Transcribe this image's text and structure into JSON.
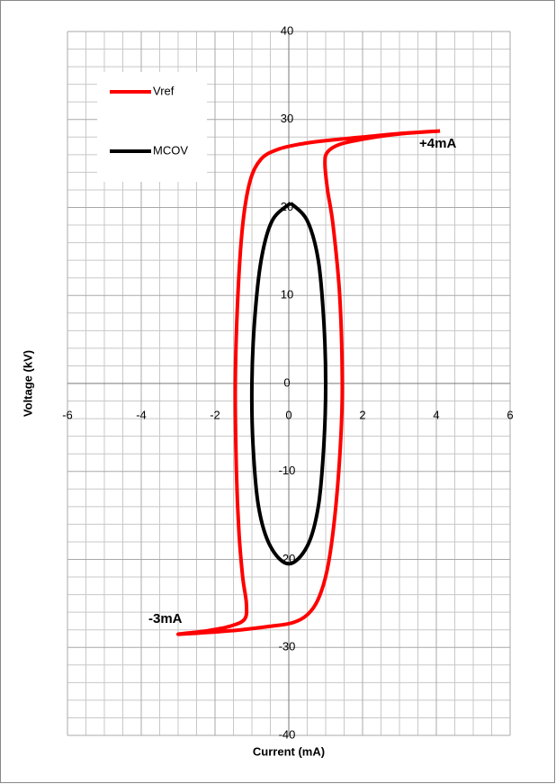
{
  "chart_data": {
    "type": "line",
    "x_label": "Current (mA)",
    "y_label": "Voltage (kV)",
    "xlim": [
      -6,
      6
    ],
    "xticks": [
      -6,
      -4,
      -2,
      0,
      2,
      4,
      6
    ],
    "ylim": [
      -40,
      40
    ],
    "yticks": [
      -40,
      -30,
      -20,
      -10,
      0,
      10,
      20,
      30,
      40
    ],
    "grid": true,
    "legend": "upper left",
    "series": [
      {
        "name": "Vref",
        "color": "#ff0000",
        "x": [
          4.1,
          3,
          2,
          1,
          0.3,
          -0.3,
          -0.75,
          -1.05,
          -1.25,
          -1.38,
          -1.45,
          -1.42,
          -1.35,
          -1.25,
          -1.15,
          -1.2,
          -1.6,
          -2.2,
          -3,
          -2.2,
          -1.3,
          -0.5,
          0.1,
          0.5,
          0.8,
          1.05,
          1.25,
          1.4,
          1.45,
          1.38,
          1.2,
          1.05,
          0.98,
          1.05,
          1.4,
          2.2,
          3.1,
          4.1
        ],
        "values": [
          28.7,
          28.4,
          28,
          27.6,
          27.2,
          26.6,
          25.5,
          23,
          18,
          10,
          0,
          -10,
          -17,
          -22,
          -25,
          -26.8,
          -27.6,
          -28.1,
          -28.5,
          -28.3,
          -28,
          -27.6,
          -27.2,
          -26.3,
          -24.5,
          -21,
          -15,
          -7,
          0,
          10,
          18,
          22,
          25,
          26.3,
          27.2,
          27.9,
          28.4,
          28.7
        ]
      },
      {
        "name": "MCOV",
        "color": "#000000",
        "x": [
          0.05,
          0.5,
          0.8,
          0.95,
          1,
          0.95,
          0.8,
          0.5,
          0,
          -0.5,
          -0.82,
          -0.97,
          -1,
          -0.93,
          -0.75,
          -0.45,
          0.05
        ],
        "values": [
          20.5,
          18.5,
          14,
          7,
          0,
          -7,
          -14,
          -18.5,
          -20.5,
          -18.5,
          -14,
          -7,
          0,
          7,
          14,
          18.5,
          20.5
        ]
      }
    ],
    "annotations": [
      "+4mA",
      "-3mA"
    ]
  }
}
